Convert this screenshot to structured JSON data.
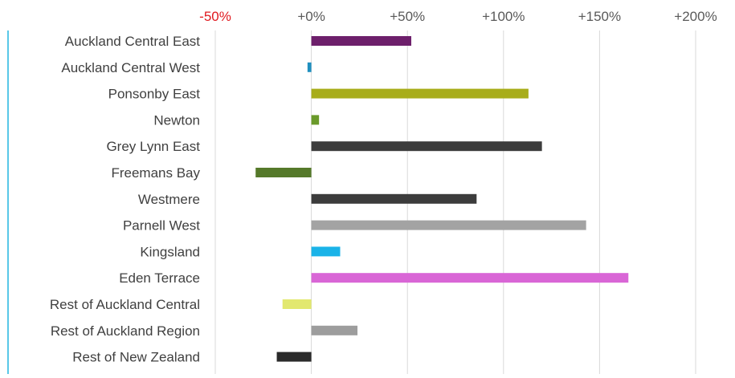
{
  "chart_data": {
    "type": "bar",
    "orientation": "horizontal",
    "categories": [
      "Auckland Central East",
      "Auckland Central West",
      "Ponsonby East",
      "Newton",
      "Grey Lynn East",
      "Freemans Bay",
      "Westmere",
      "Parnell West",
      "Kingsland",
      "Eden Terrace",
      "Rest of Auckland Central",
      "Rest of Auckland Region",
      "Rest of New Zealand"
    ],
    "values": [
      52,
      -2,
      113,
      4,
      120,
      -29,
      86,
      143,
      15,
      165,
      -15,
      24,
      -18
    ],
    "colors": [
      "#6d1f6b",
      "#1f8fbf",
      "#a8ad1a",
      "#6a9a2a",
      "#3c3c3c",
      "#55792a",
      "#3c3c3c",
      "#a3a3a3",
      "#1ab3e8",
      "#d966d6",
      "#e2e86f",
      "#9d9d9d",
      "#2a2a2a"
    ],
    "xlim": [
      -50,
      200
    ],
    "xticks": [
      -50,
      0,
      50,
      100,
      150,
      200
    ],
    "xtick_labels": [
      "-50%",
      "+0%",
      "+50%",
      "+100%",
      "+150%",
      "+200%"
    ],
    "xtick_label_colors": [
      "#e0191f",
      "#595959",
      "#595959",
      "#595959",
      "#595959",
      "#595959"
    ],
    "grid": true,
    "gridline_color": "#d9d9d9",
    "axis_accent_color": "#59c8e8",
    "label_color": "#404040",
    "title": "",
    "xlabel": "",
    "ylabel": ""
  }
}
